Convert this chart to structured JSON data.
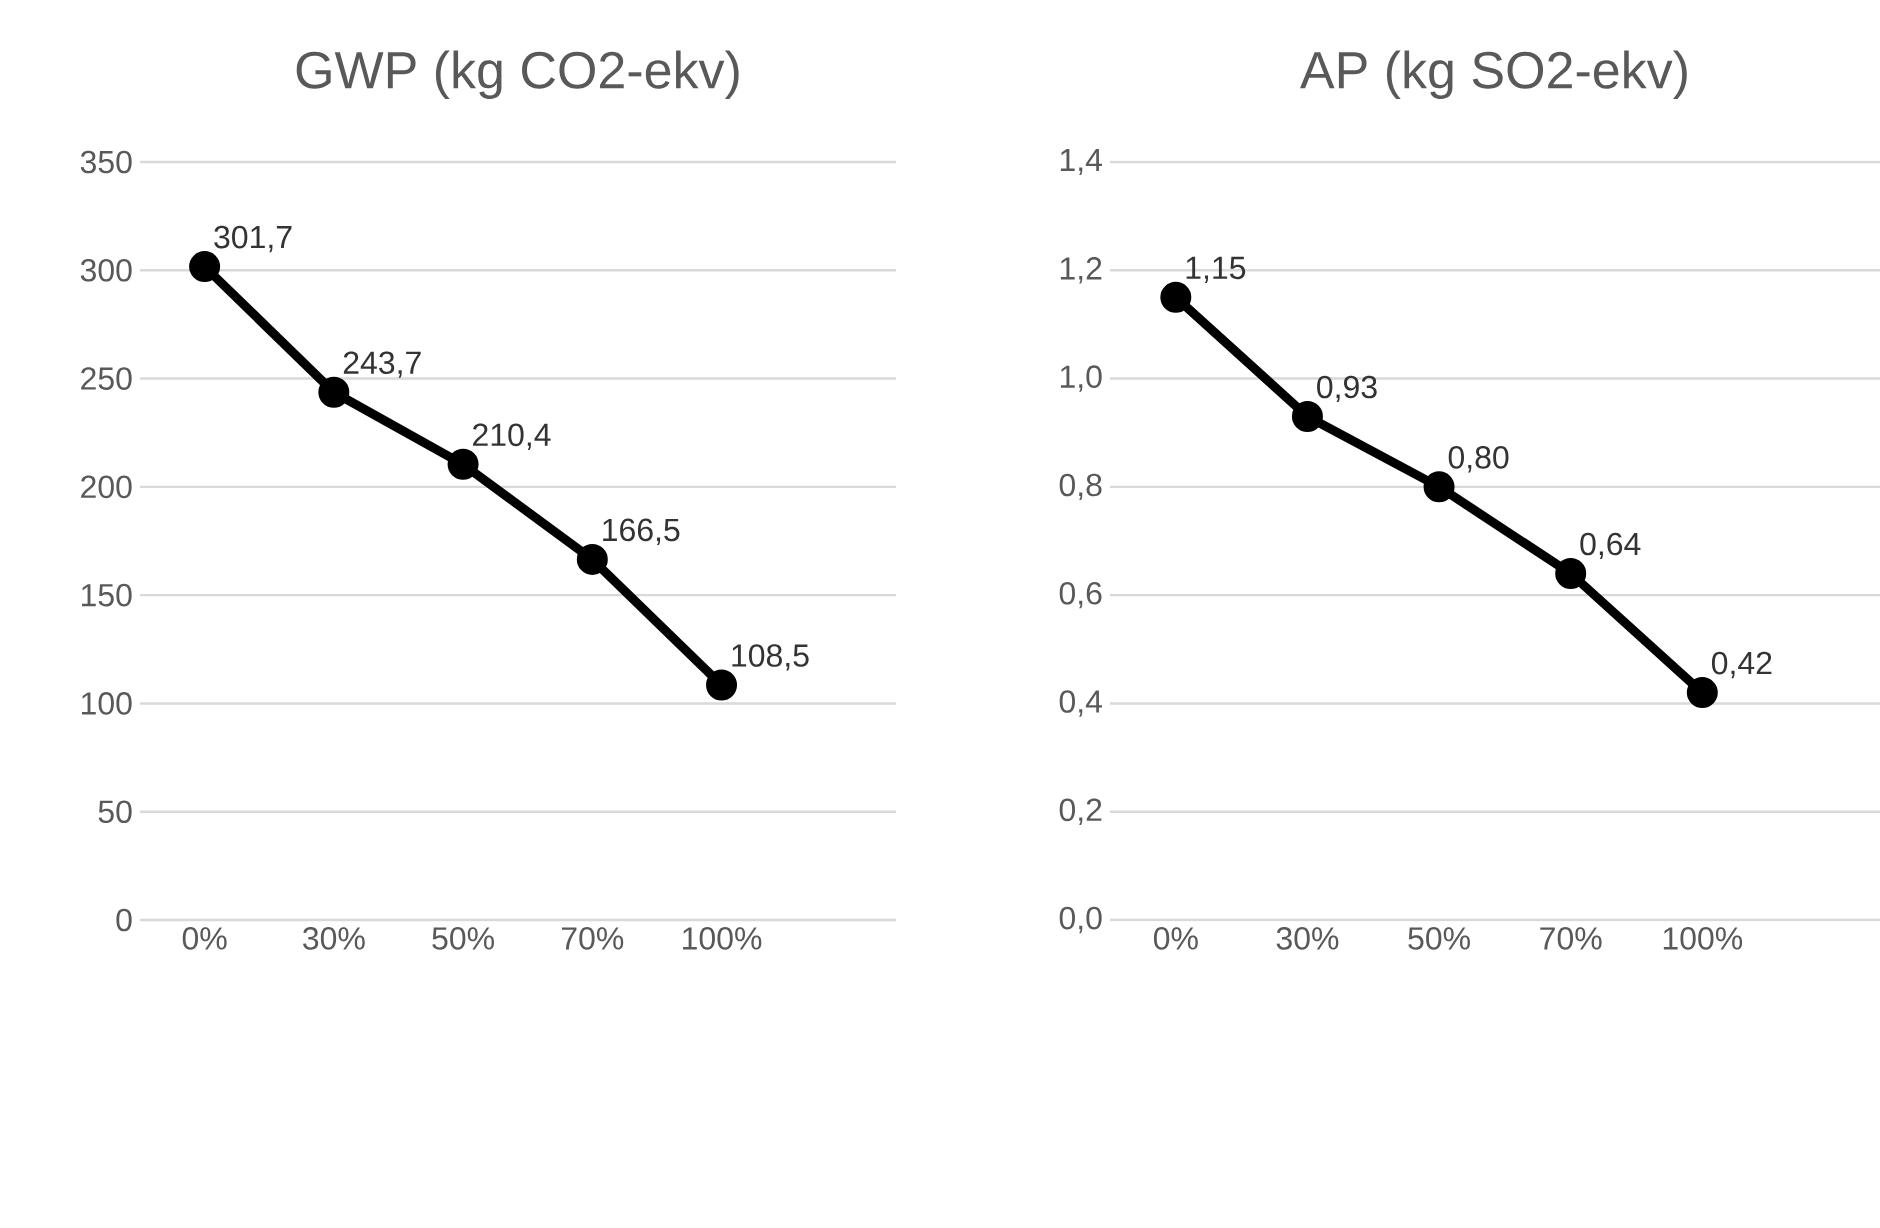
{
  "chart_data": [
    {
      "type": "line",
      "title": "GWP (kg CO2-ekv)",
      "categories": [
        "0%",
        "30%",
        "50%",
        "70%",
        "100%"
      ],
      "series": [
        {
          "color": "#000000",
          "values": [
            301.7,
            243.7,
            210.4,
            166.5,
            108.5
          ],
          "value_labels": [
            "301,7",
            "243,7",
            "210,4",
            "166,5",
            "108,5"
          ]
        }
      ],
      "ylim": [
        0,
        350
      ],
      "yticks": [
        0,
        50,
        100,
        150,
        200,
        250,
        300,
        350
      ],
      "grid": "y",
      "marker": "circle",
      "line_style": "solid"
    },
    {
      "type": "line",
      "title": "AP (kg SO2-ekv)",
      "categories": [
        "0%",
        "30%",
        "50%",
        "70%",
        "100%"
      ],
      "series": [
        {
          "color": "#000000",
          "values": [
            1.15,
            0.93,
            0.8,
            0.64,
            0.42
          ],
          "value_labels": [
            "1,15",
            "0,93",
            "0,80",
            "0,64",
            "0,42"
          ]
        }
      ],
      "ylim": [
        0,
        1.4
      ],
      "yticks": [
        {
          "value": 0,
          "label": "0,0"
        },
        {
          "value": 0.2,
          "label": "0,2"
        },
        {
          "value": 0.4,
          "label": "0,4"
        },
        {
          "value": 0.6,
          "label": "0,6"
        },
        {
          "value": 0.8,
          "label": "0,8"
        },
        {
          "value": 1.0,
          "label": "1,0"
        },
        {
          "value": 1.2,
          "label": "1,2"
        },
        {
          "value": 1.4,
          "label": "1,4"
        }
      ],
      "grid": "y",
      "marker": "circle",
      "line_style": "solid"
    }
  ]
}
